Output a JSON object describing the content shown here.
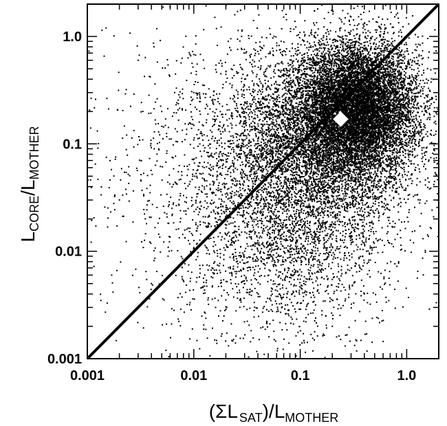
{
  "chart_data": {
    "type": "scatter",
    "x_scale": "log",
    "y_scale": "log",
    "xlim": [
      0.001,
      2.0
    ],
    "ylim": [
      0.001,
      2.0
    ],
    "grid": false,
    "legend": "none",
    "x_ticks": [
      {
        "value": 0.001,
        "label": "0.001"
      },
      {
        "value": 0.01,
        "label": "0.01"
      },
      {
        "value": 0.1,
        "label": "0.1"
      },
      {
        "value": 1.0,
        "label": "1.0"
      }
    ],
    "y_ticks": [
      {
        "value": 0.001,
        "label": "0.001"
      },
      {
        "value": 0.01,
        "label": "0.01"
      },
      {
        "value": 0.1,
        "label": "0.1"
      },
      {
        "value": 1.0,
        "label": "1.0"
      }
    ],
    "xlabel": {
      "pre": "(ΣL",
      "sub1": "SAT",
      "mid": ")/L",
      "sub2": "MOTHER"
    },
    "ylabel": {
      "pre": "L",
      "sub1": "CORE",
      "mid": "/L",
      "sub2": "MOTHER"
    },
    "reference_line": {
      "x": [
        0.001,
        2.0
      ],
      "y": [
        0.001,
        2.0
      ]
    },
    "highlight_point": {
      "x": 0.24,
      "y": 0.17,
      "color": "#ffffff"
    },
    "point_color": "#000000",
    "density_clusters": [
      {
        "x_center": 0.35,
        "y_center": 0.22,
        "spread_dex_x": 0.28,
        "spread_dex_y": 0.3,
        "count": 9000
      },
      {
        "x_center": 0.15,
        "y_center": 0.1,
        "spread_dex_x": 0.45,
        "spread_dex_y": 0.45,
        "count": 4500
      },
      {
        "x_center": 0.08,
        "y_center": 0.02,
        "spread_dex_x": 0.5,
        "spread_dex_y": 0.55,
        "count": 2500
      },
      {
        "x_center": 0.02,
        "y_center": 0.05,
        "spread_dex_x": 0.7,
        "spread_dex_y": 0.8,
        "count": 1200
      }
    ],
    "sample_points": [
      {
        "x": 0.0015,
        "y": 1.2
      },
      {
        "x": 0.003,
        "y": 0.6
      },
      {
        "x": 0.005,
        "y": 0.2
      },
      {
        "x": 0.002,
        "y": 0.03
      },
      {
        "x": 0.004,
        "y": 0.005
      },
      {
        "x": 0.01,
        "y": 0.3
      },
      {
        "x": 0.03,
        "y": 0.4
      },
      {
        "x": 0.05,
        "y": 0.01
      },
      {
        "x": 0.2,
        "y": 0.002
      },
      {
        "x": 0.4,
        "y": 0.004
      },
      {
        "x": 0.9,
        "y": 0.6
      },
      {
        "x": 1.5,
        "y": 0.2
      },
      {
        "x": 0.5,
        "y": 0.3
      },
      {
        "x": 0.3,
        "y": 0.15
      },
      {
        "x": 0.1,
        "y": 0.08
      }
    ]
  }
}
